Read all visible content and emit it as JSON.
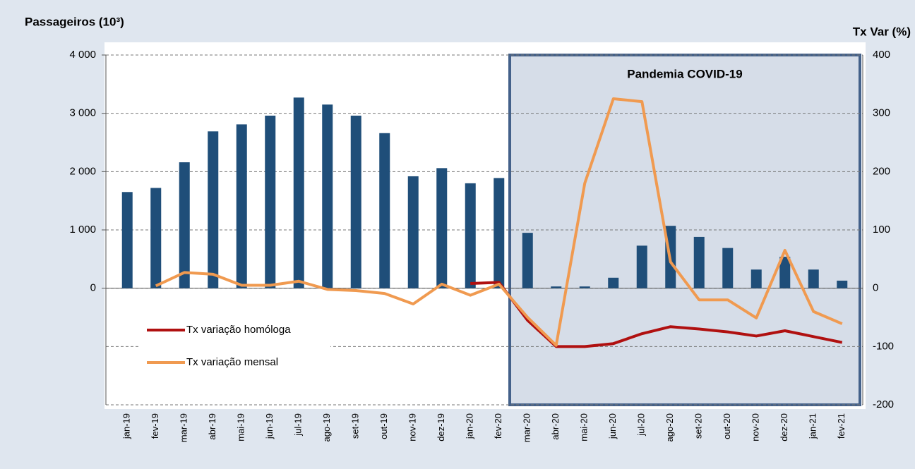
{
  "chart_data": {
    "type": "bar-line",
    "y_label": "Passageiros (10³)",
    "y2_label": "Tx Var (%)",
    "annotation": "Pandemia COVID-19",
    "categories": [
      "jan-19",
      "fev-19",
      "mar-19",
      "abr-19",
      "mai-19",
      "jun-19",
      "jul-19",
      "ago-19",
      "set-19",
      "out-19",
      "nov-19",
      "dez-19",
      "jan-20",
      "fev-20",
      "mar-20",
      "abr-20",
      "mai-20",
      "jun-20",
      "jul-20",
      "ago-20",
      "set-20",
      "out-20",
      "nov-20",
      "dez-20",
      "jan-21",
      "fev-21"
    ],
    "series": [
      {
        "type": "bar",
        "color": "#1f4e79",
        "axis": "y",
        "values": [
          1650,
          1720,
          2160,
          2690,
          2810,
          2960,
          3270,
          3150,
          2960,
          2660,
          1920,
          2060,
          1800,
          1890,
          950,
          30,
          30,
          180,
          730,
          1070,
          880,
          690,
          320,
          540,
          320,
          130
        ]
      },
      {
        "type": "line",
        "name": "Tx variação homóloga",
        "color": "#b01010",
        "axis": "y2",
        "values": [
          null,
          null,
          null,
          null,
          null,
          null,
          null,
          null,
          null,
          null,
          null,
          null,
          8,
          10,
          -55,
          -100,
          -100,
          -95,
          -78,
          -66,
          -70,
          -75,
          -82,
          -73,
          -83,
          -93
        ]
      },
      {
        "type": "line",
        "name": "Tx variação mensal",
        "color": "#f09a50",
        "axis": "y2",
        "values": [
          null,
          4,
          27,
          24,
          5,
          5,
          12,
          -2,
          -4,
          -9,
          -27,
          7,
          -12,
          7,
          -50,
          -98,
          180,
          325,
          320,
          45,
          -20,
          -20,
          -51,
          65,
          -40,
          -61
        ]
      }
    ],
    "ylim": [
      -2000,
      4000
    ],
    "yticks": [
      0,
      {
        "value": 1000,
        "label": "1 000"
      },
      {
        "value": 2000,
        "label": "2 000"
      },
      {
        "value": 3000,
        "label": "3 000"
      },
      {
        "value": 4000,
        "label": "4 000"
      }
    ],
    "y2lim": [
      -200,
      400
    ],
    "y2ticks": [
      -200,
      -100,
      0,
      100,
      200,
      300,
      400
    ],
    "grid": true,
    "legend": "lower left"
  }
}
